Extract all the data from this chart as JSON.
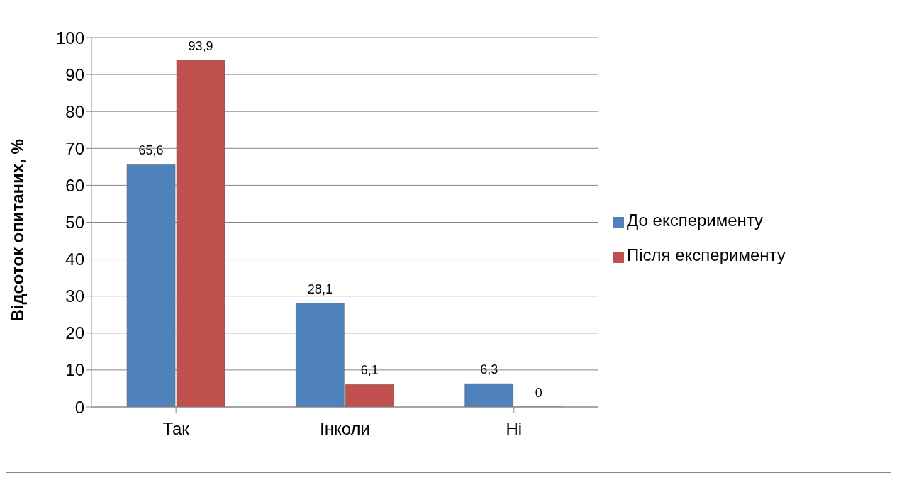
{
  "chart_data": {
    "type": "bar",
    "ylabel": "Відсоток опитаних, %",
    "categories": [
      "Так",
      "Інколи",
      "Ні"
    ],
    "series": [
      {
        "name": "До експерименту",
        "color": "#4f81bd",
        "values": [
          65.6,
          28.1,
          6.3
        ],
        "value_labels": [
          "65,6",
          "28,1",
          "6,3"
        ]
      },
      {
        "name": "Після експерименту",
        "color": "#c0504d",
        "values": [
          93.9,
          6.1,
          0
        ],
        "value_labels": [
          "93,9",
          "6,1",
          "0"
        ]
      }
    ],
    "ylim": [
      0,
      100
    ],
    "yticks": [
      0,
      10,
      20,
      30,
      40,
      50,
      60,
      70,
      80,
      90,
      100
    ],
    "grid": "y",
    "legend": "right"
  }
}
